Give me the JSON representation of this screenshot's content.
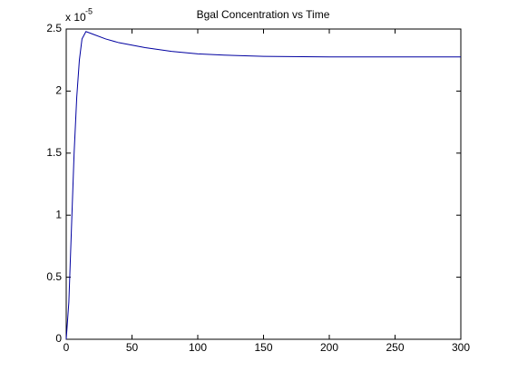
{
  "chart_data": {
    "type": "line",
    "title": "Bgal Concentration vs Time",
    "y_scale_label": "x 10",
    "y_scale_exponent": "-5",
    "x": [
      0,
      2,
      4,
      6,
      8,
      10,
      12,
      15,
      20,
      30,
      40,
      50,
      60,
      80,
      100,
      120,
      150,
      200,
      250,
      300
    ],
    "series": [
      {
        "color": "#0000a0",
        "values": [
          0,
          0.3,
          0.9,
          1.5,
          1.95,
          2.25,
          2.42,
          2.48,
          2.46,
          2.42,
          2.39,
          2.37,
          2.35,
          2.32,
          2.3,
          2.29,
          2.28,
          2.275,
          2.275,
          2.275
        ]
      }
    ],
    "xlim": [
      0,
      300
    ],
    "xticks": [
      0,
      50,
      100,
      150,
      200,
      250,
      300
    ],
    "ylim": [
      0,
      2.5
    ],
    "yticks": [
      0,
      0.5,
      1,
      1.5,
      2,
      2.5
    ],
    "grid": false
  }
}
